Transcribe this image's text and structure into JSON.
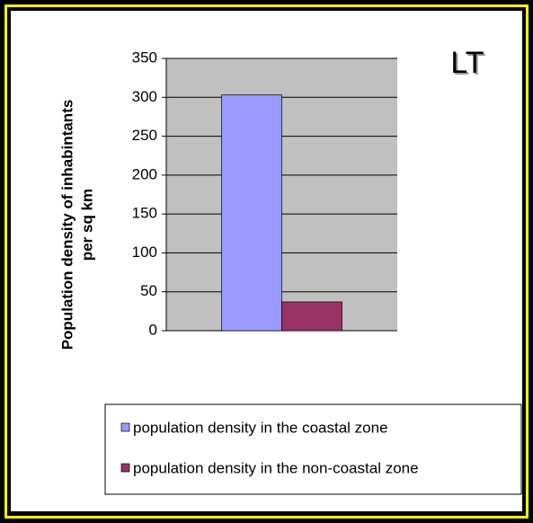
{
  "chart_data": {
    "type": "bar",
    "title": "LT",
    "y_label": [
      "Population density of inhabintants",
      "per sq km"
    ],
    "categories": [
      null
    ],
    "series": [
      {
        "name": "population density in the coastal zone",
        "color": "#9999ff",
        "values": [
          303
        ]
      },
      {
        "name": "population density in the non-coastal zone",
        "color": "#993366",
        "values": [
          37
        ]
      }
    ],
    "ylim": [
      0,
      350
    ],
    "yticks": [
      0,
      50,
      100,
      150,
      200,
      250,
      300,
      350
    ],
    "grid": true,
    "legend": "bottom"
  }
}
